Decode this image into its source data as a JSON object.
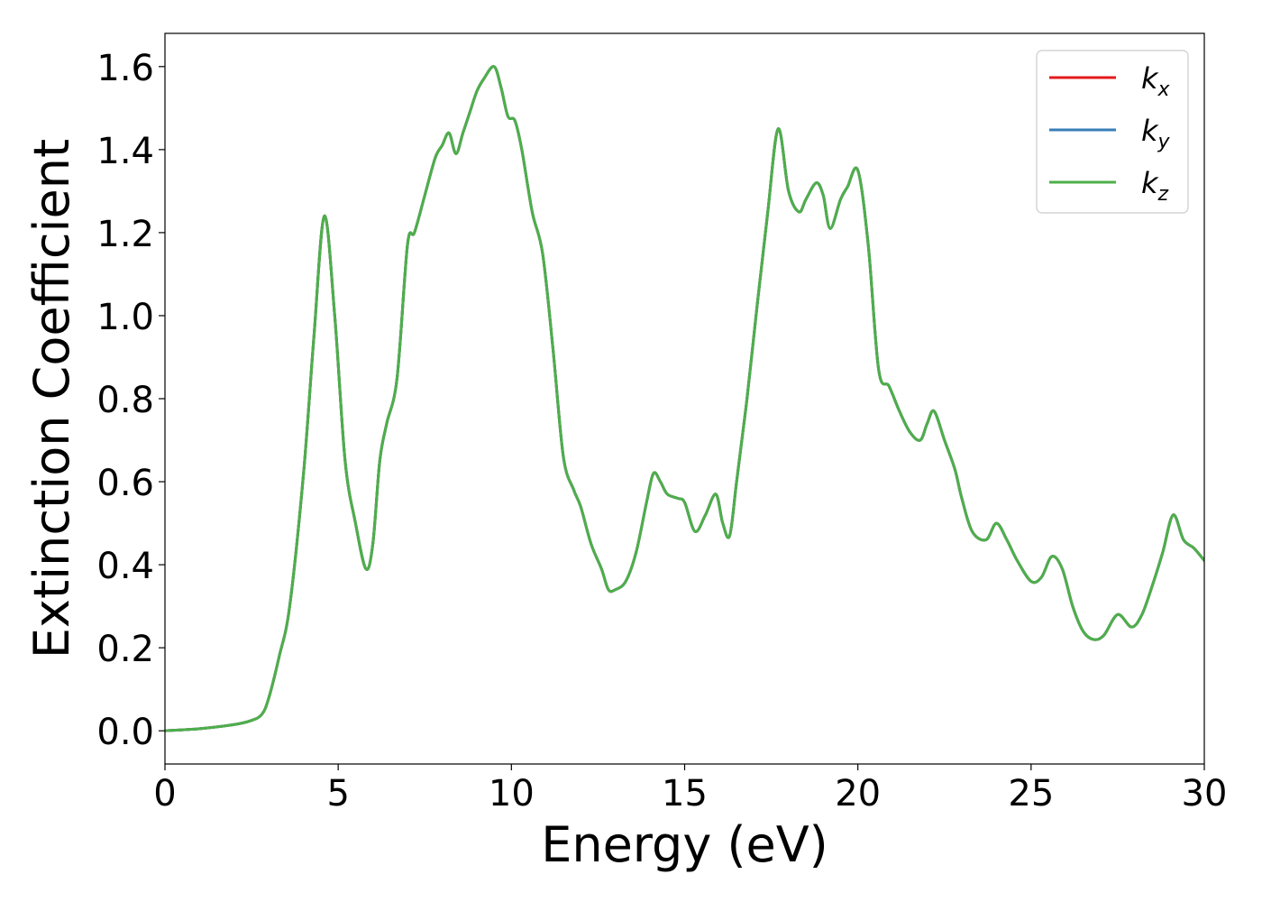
{
  "chart_data": {
    "type": "line",
    "xlabel": "Energy (eV)",
    "ylabel": "Extinction Coefficient",
    "xlim": [
      0,
      30
    ],
    "ylim": [
      -0.08,
      1.68
    ],
    "xticks": [
      0,
      5,
      10,
      15,
      20,
      25,
      30
    ],
    "yticks": [
      0.0,
      0.2,
      0.4,
      0.6,
      0.8,
      1.0,
      1.2,
      1.4,
      1.6
    ],
    "xtick_labels": [
      "0",
      "5",
      "10",
      "15",
      "20",
      "25",
      "30"
    ],
    "ytick_labels": [
      "0.0",
      "0.2",
      "0.4",
      "0.6",
      "0.8",
      "1.0",
      "1.2",
      "1.4",
      "1.6"
    ],
    "grid": false,
    "legend_placement": "top-right",
    "x": [
      0,
      1,
      2,
      2.5,
      2.8,
      3.0,
      3.3,
      3.6,
      4.0,
      4.3,
      4.6,
      4.9,
      5.2,
      5.5,
      5.8,
      6.0,
      6.2,
      6.4,
      6.7,
      7.0,
      7.2,
      7.5,
      7.8,
      8.0,
      8.2,
      8.4,
      8.6,
      8.8,
      9.0,
      9.2,
      9.5,
      9.7,
      9.9,
      10.1,
      10.3,
      10.6,
      10.9,
      11.2,
      11.5,
      11.8,
      12.0,
      12.3,
      12.6,
      12.8,
      13.0,
      13.3,
      13.6,
      13.9,
      14.1,
      14.3,
      14.5,
      14.8,
      15.0,
      15.3,
      15.6,
      15.9,
      16.1,
      16.3,
      16.5,
      16.8,
      17.1,
      17.4,
      17.7,
      18.0,
      18.3,
      18.5,
      18.8,
      19.0,
      19.2,
      19.5,
      19.7,
      20.0,
      20.3,
      20.6,
      20.9,
      21.2,
      21.5,
      21.8,
      22.0,
      22.2,
      22.5,
      22.8,
      23.0,
      23.3,
      23.7,
      24.0,
      24.3,
      24.6,
      25.0,
      25.3,
      25.6,
      25.9,
      26.2,
      26.5,
      26.8,
      27.1,
      27.5,
      27.9,
      28.2,
      28.5,
      28.8,
      29.1,
      29.4,
      29.7,
      30.0
    ],
    "series": [
      {
        "name": "k_x",
        "color": "#e41a1c",
        "values": [
          0.0,
          0.005,
          0.015,
          0.025,
          0.04,
          0.08,
          0.18,
          0.3,
          0.62,
          0.95,
          1.24,
          1.0,
          0.65,
          0.5,
          0.39,
          0.45,
          0.65,
          0.74,
          0.85,
          1.17,
          1.2,
          1.29,
          1.38,
          1.41,
          1.44,
          1.39,
          1.44,
          1.49,
          1.54,
          1.57,
          1.6,
          1.55,
          1.48,
          1.47,
          1.4,
          1.25,
          1.15,
          0.92,
          0.66,
          0.58,
          0.54,
          0.45,
          0.39,
          0.34,
          0.34,
          0.36,
          0.43,
          0.55,
          0.62,
          0.6,
          0.57,
          0.56,
          0.55,
          0.48,
          0.52,
          0.57,
          0.5,
          0.47,
          0.6,
          0.8,
          1.03,
          1.25,
          1.45,
          1.3,
          1.25,
          1.28,
          1.32,
          1.29,
          1.21,
          1.28,
          1.31,
          1.35,
          1.17,
          0.87,
          0.83,
          0.77,
          0.72,
          0.7,
          0.74,
          0.77,
          0.7,
          0.63,
          0.56,
          0.48,
          0.46,
          0.5,
          0.46,
          0.41,
          0.36,
          0.37,
          0.42,
          0.39,
          0.3,
          0.24,
          0.22,
          0.23,
          0.28,
          0.25,
          0.28,
          0.35,
          0.43,
          0.52,
          0.46,
          0.44,
          0.41
        ]
      },
      {
        "name": "k_y",
        "color": "#377eb8",
        "values": [
          0.0,
          0.005,
          0.015,
          0.025,
          0.04,
          0.08,
          0.18,
          0.3,
          0.62,
          0.95,
          1.24,
          1.0,
          0.65,
          0.5,
          0.39,
          0.45,
          0.65,
          0.74,
          0.85,
          1.17,
          1.2,
          1.29,
          1.38,
          1.41,
          1.44,
          1.39,
          1.44,
          1.49,
          1.54,
          1.57,
          1.6,
          1.55,
          1.48,
          1.47,
          1.4,
          1.25,
          1.15,
          0.92,
          0.66,
          0.58,
          0.54,
          0.45,
          0.39,
          0.34,
          0.34,
          0.36,
          0.43,
          0.55,
          0.62,
          0.6,
          0.57,
          0.56,
          0.55,
          0.48,
          0.52,
          0.57,
          0.5,
          0.47,
          0.6,
          0.8,
          1.03,
          1.25,
          1.45,
          1.3,
          1.25,
          1.28,
          1.32,
          1.29,
          1.21,
          1.28,
          1.31,
          1.35,
          1.17,
          0.87,
          0.83,
          0.77,
          0.72,
          0.7,
          0.74,
          0.77,
          0.7,
          0.63,
          0.56,
          0.48,
          0.46,
          0.5,
          0.46,
          0.41,
          0.36,
          0.37,
          0.42,
          0.39,
          0.3,
          0.24,
          0.22,
          0.23,
          0.28,
          0.25,
          0.28,
          0.35,
          0.43,
          0.52,
          0.46,
          0.44,
          0.41
        ]
      },
      {
        "name": "k_z",
        "color": "#4daf4a",
        "values": [
          0.0,
          0.005,
          0.015,
          0.025,
          0.04,
          0.08,
          0.18,
          0.3,
          0.62,
          0.95,
          1.24,
          1.0,
          0.65,
          0.5,
          0.39,
          0.45,
          0.65,
          0.74,
          0.85,
          1.17,
          1.2,
          1.29,
          1.38,
          1.41,
          1.44,
          1.39,
          1.44,
          1.49,
          1.54,
          1.57,
          1.6,
          1.55,
          1.48,
          1.47,
          1.4,
          1.25,
          1.15,
          0.92,
          0.66,
          0.58,
          0.54,
          0.45,
          0.39,
          0.34,
          0.34,
          0.36,
          0.43,
          0.55,
          0.62,
          0.6,
          0.57,
          0.56,
          0.55,
          0.48,
          0.52,
          0.57,
          0.5,
          0.47,
          0.6,
          0.8,
          1.03,
          1.25,
          1.45,
          1.3,
          1.25,
          1.28,
          1.32,
          1.29,
          1.21,
          1.28,
          1.31,
          1.35,
          1.17,
          0.87,
          0.83,
          0.77,
          0.72,
          0.7,
          0.74,
          0.77,
          0.7,
          0.63,
          0.56,
          0.48,
          0.46,
          0.5,
          0.46,
          0.41,
          0.36,
          0.37,
          0.42,
          0.39,
          0.3,
          0.24,
          0.22,
          0.23,
          0.28,
          0.25,
          0.28,
          0.35,
          0.43,
          0.52,
          0.46,
          0.44,
          0.41
        ]
      }
    ],
    "legend": [
      {
        "base": "k",
        "sub": "x",
        "color": "#e41a1c"
      },
      {
        "base": "k",
        "sub": "y",
        "color": "#377eb8"
      },
      {
        "base": "k",
        "sub": "z",
        "color": "#4daf4a"
      }
    ]
  }
}
